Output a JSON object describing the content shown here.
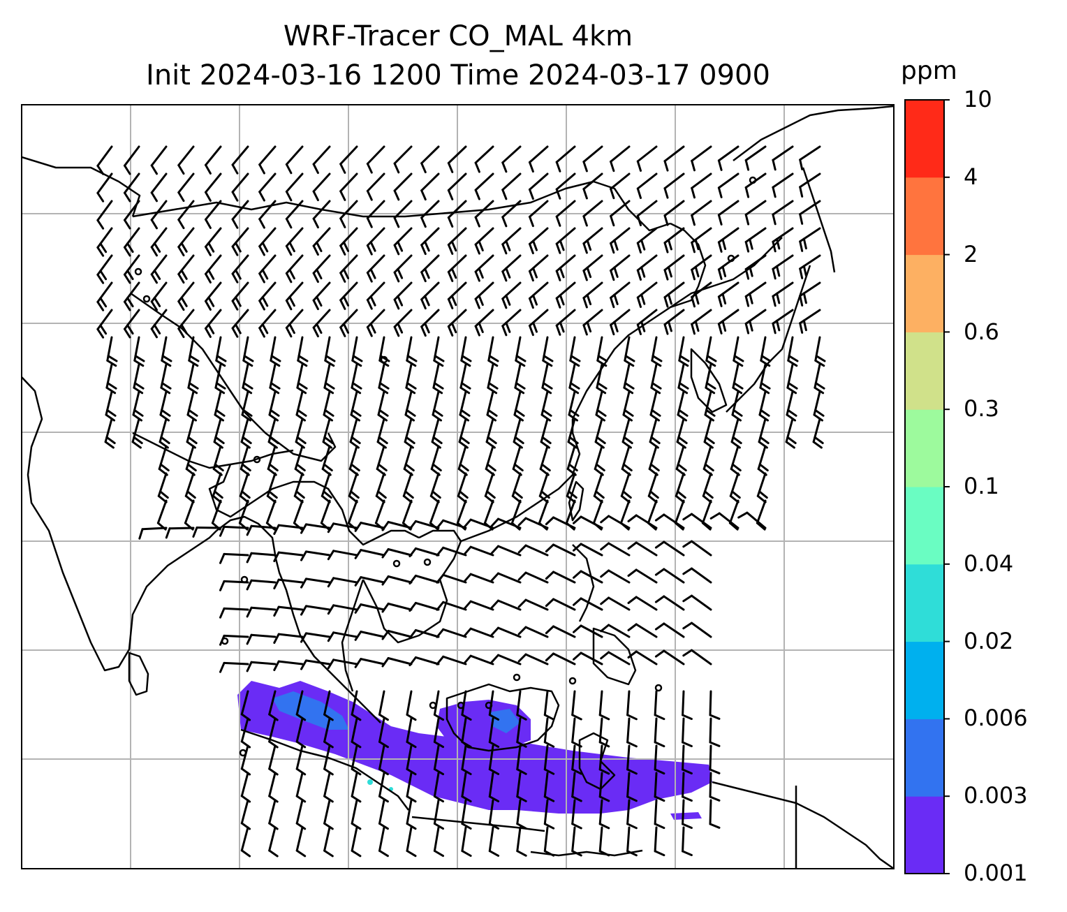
{
  "title": {
    "line1": "WRF-Tracer CO_MAL 4km",
    "line2": "Init 2024-03-16 1200 Time 2024-03-17 0900"
  },
  "colorbar": {
    "unit": "ppm",
    "levels": [
      "0.001",
      "0.003",
      "0.006",
      "0.02",
      "0.04",
      "0.1",
      "0.3",
      "0.6",
      "2",
      "4",
      "10"
    ],
    "colors": [
      "#6a2cf5",
      "#3273f0",
      "#00b0ee",
      "#2fddd8",
      "#6afdc2",
      "#9dfa9d",
      "#d0e18a",
      "#fdb062",
      "#ff743e",
      "#ff2a18"
    ]
  },
  "map": {
    "projection": "Mercator",
    "gridlines": true,
    "coastlines": true,
    "wind_barbs": true,
    "tracer": "CO_MAL",
    "region": "East and Southeast Asia"
  },
  "colors": {
    "gridline": "#b3b3b3",
    "coastline": "#000000",
    "plume_main": "#6a2cf5",
    "plume_secondary": "#3273f0",
    "plume_highlight": "#2fddd8"
  }
}
